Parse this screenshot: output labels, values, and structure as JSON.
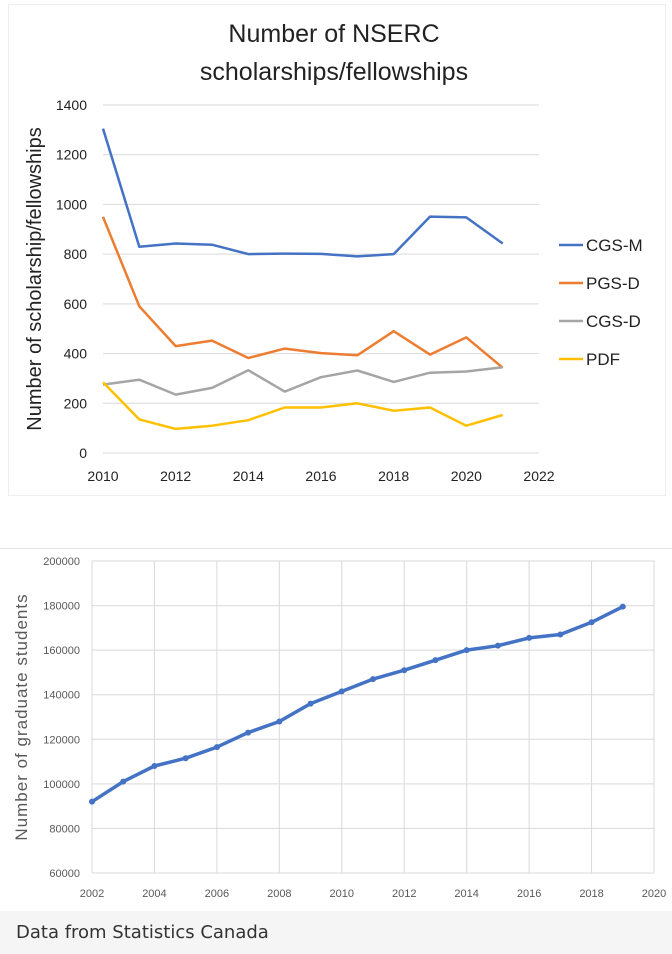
{
  "chart_data": [
    {
      "type": "line",
      "title": "Number of NSERC scholarships/fellowships",
      "title_lines": [
        "Number of NSERC",
        "scholarships/fellowships"
      ],
      "xlabel": "",
      "ylabel": "Number of scholarship/fellowships",
      "xlim": [
        2010,
        2022
      ],
      "ylim": [
        0,
        1400
      ],
      "x_ticks": [
        2010,
        2012,
        2014,
        2016,
        2018,
        2020,
        2022
      ],
      "y_ticks": [
        0,
        200,
        400,
        600,
        800,
        1000,
        1200,
        1400
      ],
      "grid": true,
      "legend_position": "right",
      "x": [
        2010,
        2011,
        2012,
        2013,
        2014,
        2015,
        2016,
        2017,
        2018,
        2019,
        2020,
        2021
      ],
      "series": [
        {
          "name": "CGS-M",
          "color": "#4472c4",
          "values": [
            1305,
            830,
            843,
            838,
            800,
            802,
            801,
            791,
            800,
            951,
            948,
            843
          ]
        },
        {
          "name": "PGS-D",
          "color": "#ed7d31",
          "values": [
            950,
            590,
            430,
            452,
            382,
            420,
            402,
            393,
            490,
            396,
            465,
            343
          ]
        },
        {
          "name": "CGS-D",
          "color": "#a5a5a5",
          "values": [
            275,
            295,
            235,
            262,
            333,
            247,
            305,
            332,
            286,
            323,
            328,
            345
          ]
        },
        {
          "name": "PDF",
          "color": "#ffc000",
          "values": [
            285,
            135,
            97,
            110,
            132,
            183,
            183,
            200,
            170,
            183,
            110,
            153
          ]
        }
      ]
    },
    {
      "type": "line",
      "title": "",
      "xlabel": "",
      "ylabel": "Number of graduate students",
      "xlim": [
        2002,
        2020
      ],
      "ylim": [
        60000,
        200000
      ],
      "x_ticks": [
        2002,
        2004,
        2006,
        2008,
        2010,
        2012,
        2014,
        2016,
        2018,
        2020
      ],
      "y_ticks": [
        60000,
        80000,
        100000,
        120000,
        140000,
        160000,
        180000,
        200000
      ],
      "grid": true,
      "x": [
        2002,
        2003,
        2004,
        2005,
        2006,
        2007,
        2008,
        2009,
        2010,
        2011,
        2012,
        2013,
        2014,
        2015,
        2016,
        2017,
        2018,
        2019
      ],
      "series": [
        {
          "color": "#4472c4",
          "values": [
            92000,
            101000,
            108000,
            111500,
            116500,
            123000,
            128000,
            136000,
            141500,
            147000,
            151000,
            155500,
            160000,
            162000,
            165500,
            167000,
            172500,
            179500
          ]
        }
      ]
    }
  ],
  "caption": "Data from Statistics Canada"
}
